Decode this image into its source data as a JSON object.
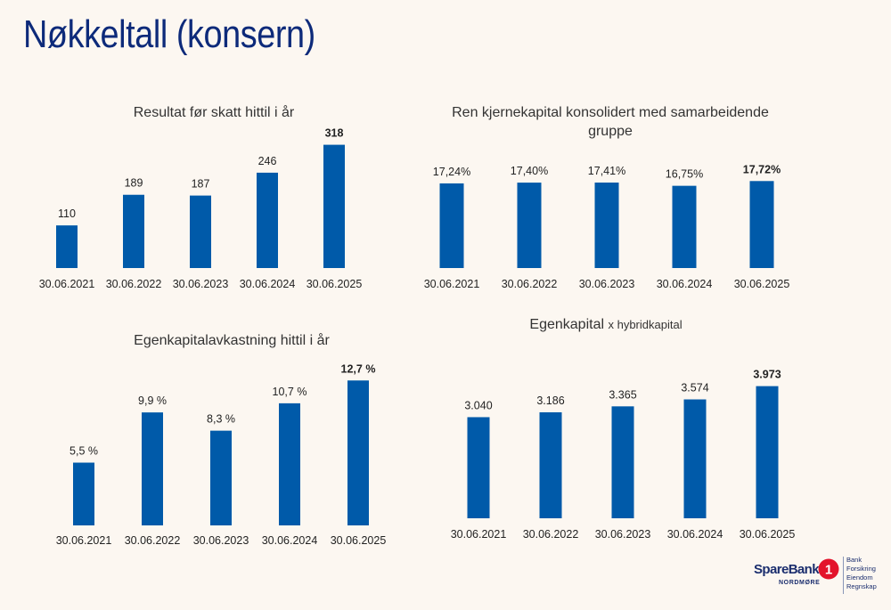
{
  "page": {
    "title": "Nøkkeltall (konsern)"
  },
  "brand": {
    "bar_color": "#005aa9",
    "title_color": "#0d2a7a",
    "logo_name": "SpareBank",
    "logo_number": "1",
    "logo_region": "NORDMØRE",
    "services": [
      "Bank",
      "Forsikring",
      "Eiendom",
      "Regnskap"
    ]
  },
  "chart_data": [
    {
      "type": "bar",
      "title": "Resultat før skatt hittil i år",
      "categories": [
        "30.06.2021",
        "30.06.2022",
        "30.06.2023",
        "30.06.2024",
        "30.06.2025"
      ],
      "values": [
        110,
        189,
        187,
        246,
        318
      ],
      "value_labels": [
        "110",
        "189",
        "187",
        "246",
        "318"
      ],
      "highlight_last": true,
      "ylim": [
        0,
        340
      ]
    },
    {
      "type": "bar",
      "title": "Ren kjernekapital konsolidert med samarbeidende gruppe",
      "categories": [
        "30.06.2021",
        "30.06.2022",
        "30.06.2023",
        "30.06.2024",
        "30.06.2025"
      ],
      "values": [
        17.24,
        17.4,
        17.41,
        16.75,
        17.72
      ],
      "value_labels": [
        "17,24%",
        "17,40%",
        "17,41%",
        "16,75%",
        "17,72%"
      ],
      "highlight_last": true,
      "ylim": [
        0,
        18.5
      ]
    },
    {
      "type": "bar",
      "title": "Egenkapitalavkastning hittil i år",
      "categories": [
        "30.06.2021",
        "30.06.2022",
        "30.06.2023",
        "30.06.2024",
        "30.06.2025"
      ],
      "values": [
        5.5,
        9.9,
        8.3,
        10.7,
        12.7
      ],
      "value_labels": [
        "5,5 %",
        "9,9 %",
        "8,3 %",
        "10,7 %",
        "12,7 %"
      ],
      "highlight_last": true,
      "ylim": [
        0,
        13.5
      ]
    },
    {
      "type": "bar",
      "title": "Egenkapital",
      "title_suffix": "x hybridkapital",
      "categories": [
        "30.06.2021",
        "30.06.2022",
        "30.06.2023",
        "30.06.2024",
        "30.06.2025"
      ],
      "values": [
        3040,
        3186,
        3365,
        3574,
        3973
      ],
      "value_labels": [
        "3.040",
        "3.186",
        "3.365",
        "3.574",
        "3.973"
      ],
      "highlight_last": true,
      "ylim": [
        0,
        4150
      ]
    }
  ]
}
